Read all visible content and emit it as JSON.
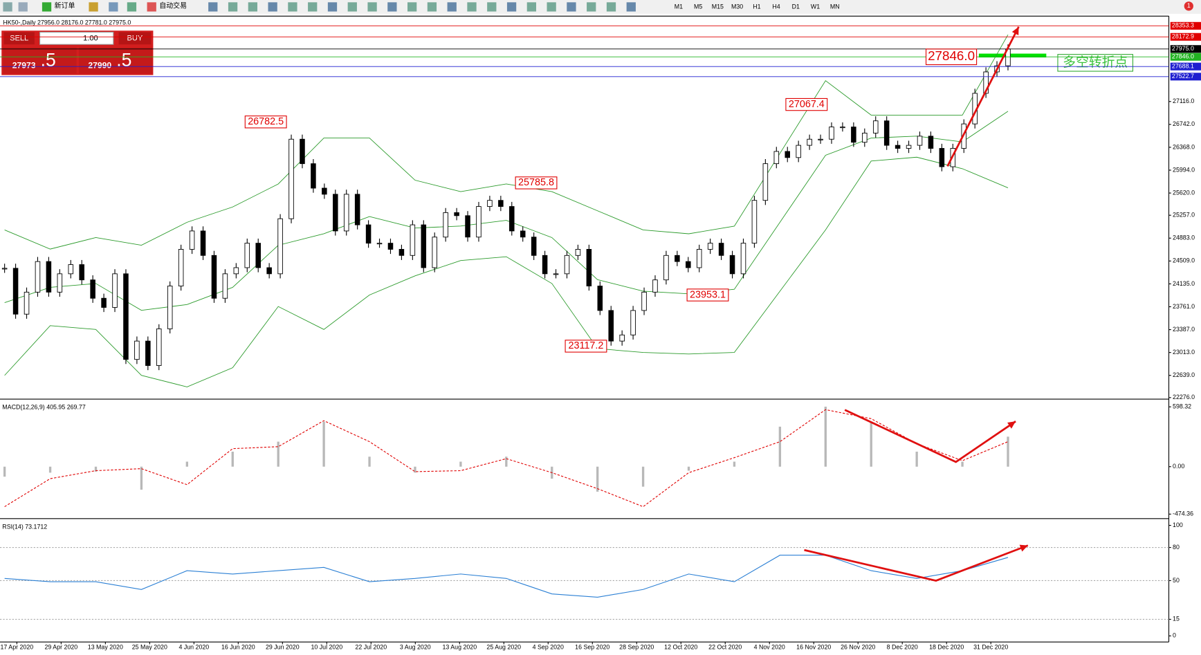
{
  "toolbar": {
    "new_order": "新订单",
    "auto_trade": "自动交易",
    "timeframes": [
      "M1",
      "M5",
      "M15",
      "M30",
      "H1",
      "H4",
      "D1",
      "W1",
      "MN"
    ],
    "alert_count": "1"
  },
  "order_panel": {
    "sell": "SELL",
    "buy": "BUY",
    "volume": "1.00",
    "bid_main": "27973",
    "bid_pip": ".5",
    "ask_main": "27990",
    "ask_pip": ".5"
  },
  "chart": {
    "header": "HK50-,Daily  27956.0 28176.0 27781.0 27975.0",
    "ylim": [
      22276,
      28500
    ],
    "yticks": [
      {
        "value": 27116,
        "label": "27116.0"
      },
      {
        "value": 26742,
        "label": "26742.0"
      },
      {
        "value": 26368,
        "label": "26368.0"
      },
      {
        "value": 25994,
        "label": "25994.0"
      },
      {
        "value": 25620,
        "label": "25620.0"
      },
      {
        "value": 25257,
        "label": "25257.0"
      },
      {
        "value": 24883,
        "label": "24883.0"
      },
      {
        "value": 24509,
        "label": "24509.0"
      },
      {
        "value": 24135,
        "label": "24135.0"
      },
      {
        "value": 23761,
        "label": "23761.0"
      },
      {
        "value": 23387,
        "label": "23387.0"
      },
      {
        "value": 23013,
        "label": "23013.0"
      },
      {
        "value": 22639,
        "label": "22639.0"
      },
      {
        "value": 22276,
        "label": "22276.0"
      }
    ],
    "price_lines": [
      {
        "value": 28353.3,
        "label": "28353.3",
        "color": "#e00000"
      },
      {
        "value": 28172.9,
        "label": "28172.9",
        "color": "#e00000"
      },
      {
        "value": 27975,
        "label": "27975.0",
        "color": "#000000"
      },
      {
        "value": 27846,
        "label": "27846.0",
        "color": "#22b422"
      },
      {
        "value": 27688.1,
        "label": "27688.1",
        "color": "#1f1fd0"
      },
      {
        "value": 27522.7,
        "label": "27522.7",
        "color": "#1f1fd0"
      }
    ],
    "closes": [
      24390,
      23640,
      24000,
      24500,
      24000,
      24300,
      24450,
      24200,
      23900,
      23750,
      24300,
      22900,
      23200,
      22800,
      23400,
      24100,
      24700,
      25000,
      24600,
      23900,
      24300,
      24400,
      24800,
      24400,
      24300,
      25200,
      26500,
      26100,
      25700,
      25600,
      25000,
      25600,
      25100,
      24800,
      24800,
      24700,
      24600,
      25100,
      24400,
      24900,
      25300,
      25250,
      24900,
      25400,
      25500,
      25400,
      25000,
      24900,
      24600,
      24300,
      24300,
      24600,
      24700,
      24100,
      23700,
      23200,
      23300,
      23700,
      24000,
      24200,
      24600,
      24500,
      24400,
      24700,
      24800,
      24600,
      24300,
      24800,
      25500,
      26100,
      26300,
      26200,
      26400,
      26500,
      26500,
      26700,
      26700,
      26450,
      26600,
      26800,
      26400,
      26350,
      26400,
      26550,
      26350,
      26050,
      26350,
      26750,
      27250,
      27600,
      27700,
      27975
    ],
    "band_upper": [
      25017,
      24704,
      24892,
      24767,
      25142,
      25392,
      25768,
      26519,
      26519,
      25830,
      25643,
      25768,
      25643,
      25330,
      25017,
      24954,
      25079,
      26269,
      27457,
      26894,
      26894,
      26894,
      28208
    ],
    "band_middle": [
      23828,
      24078,
      24141,
      23703,
      23797,
      24078,
      24766,
      24955,
      25236,
      25048,
      25080,
      25174,
      24892,
      24204,
      24016,
      23972,
      24047,
      25142,
      26237,
      26519,
      26550,
      26456,
      26957
    ],
    "band_lower": [
      22639,
      23452,
      23390,
      22639,
      22451,
      22764,
      23765,
      23390,
      23953,
      24266,
      24516,
      24579,
      24141,
      23077,
      23014,
      22989,
      23014,
      24015,
      25017,
      26143,
      26206,
      26018,
      25705
    ],
    "annotations": [
      {
        "value": 26782.5,
        "label": "26782.5"
      },
      {
        "value": 25785.8,
        "label": "25785.8"
      },
      {
        "value": 27067.4,
        "label": "27067.4"
      },
      {
        "value": 23953.1,
        "label": "23953.1"
      },
      {
        "value": 23117.2,
        "label": "23117.2"
      },
      {
        "value": 27846,
        "label": "27846.0"
      }
    ],
    "turning_point": "多空转折点",
    "dates": [
      "17 Apr 2020",
      "29 Apr 2020",
      "13 May 2020",
      "25 May 2020",
      "4 Jun 2020",
      "16 Jun 2020",
      "29 Jun 2020",
      "10 Jul 2020",
      "22 Jul 2020",
      "3 Aug 2020",
      "13 Aug 2020",
      "25 Aug 2020",
      "4 Sep 2020",
      "16 Sep 2020",
      "28 Sep 2020",
      "12 Oct 2020",
      "22 Oct 2020",
      "4 Nov 2020",
      "16 Nov 2020",
      "26 Nov 2020",
      "8 Dec 2020",
      "18 Dec 2020",
      "31 Dec 2020"
    ]
  },
  "macd": {
    "header": "MACD(12,26,9) 405.95 269.77",
    "ylim": [
      -512,
      660
    ],
    "yticks": [
      598.32,
      {
        "value": 0,
        "label": "0.00"
      },
      -474.36
    ],
    "histogram": [
      -100,
      -60,
      -50,
      -230,
      50,
      150,
      250,
      450,
      100,
      -60,
      50,
      100,
      -120,
      -250,
      -200,
      -40,
      50,
      400,
      600,
      450,
      150,
      50,
      300
    ],
    "signal": [
      -400,
      -120,
      -40,
      -20,
      -180,
      180,
      200,
      460,
      250,
      -50,
      -40,
      80,
      -60,
      -220,
      -400,
      -60,
      90,
      250,
      570,
      480,
      230,
      60,
      250
    ]
  },
  "rsi": {
    "header": "RSI(14) 73.1712",
    "ylim": [
      -5.5,
      104
    ],
    "yticks": [
      100,
      80,
      50,
      15,
      0
    ],
    "levels": [
      80,
      50,
      15
    ],
    "values": [
      52,
      49,
      49,
      42,
      59,
      56,
      59,
      62,
      49,
      52,
      56,
      52,
      38,
      35,
      42,
      56,
      49,
      73,
      73,
      59,
      52,
      59,
      71
    ]
  }
}
